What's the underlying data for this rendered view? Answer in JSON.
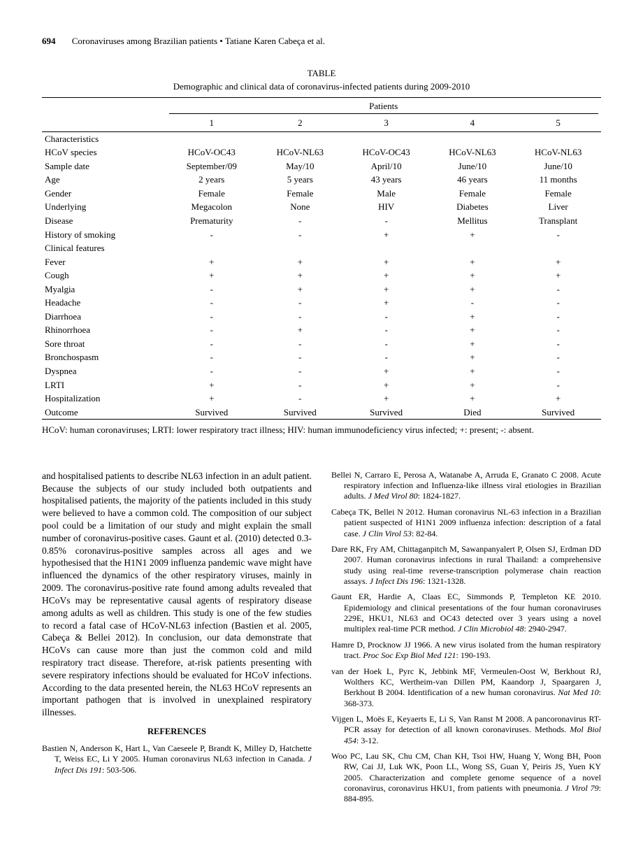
{
  "header": {
    "page_number": "694",
    "running_title": "Coronaviruses among Brazilian patients • Tatiane Karen Cabeça et al."
  },
  "table": {
    "caption_label": "TABLE",
    "caption_title": "Demographic and clinical data of coronavirus-infected patients during 2009-2010",
    "spanner": "Patients",
    "col_headers": [
      "1",
      "2",
      "3",
      "4",
      "5"
    ],
    "sections": [
      {
        "title": "Characteristics",
        "rows": [
          {
            "label": "HCoV species",
            "cells": [
              "HCoV-OC43",
              "HCoV-NL63",
              "HCoV-OC43",
              "HCoV-NL63",
              "HCoV-NL63"
            ]
          },
          {
            "label": "Sample date",
            "cells": [
              "September/09",
              "May/10",
              "April/10",
              "June/10",
              "June/10"
            ]
          },
          {
            "label": "Age",
            "cells": [
              "2 years",
              "5 years",
              "43 years",
              "46 years",
              "11 months"
            ]
          },
          {
            "label": "Gender",
            "cells": [
              "Female",
              "Female",
              "Male",
              "Female",
              "Female"
            ]
          },
          {
            "label": "Underlying",
            "cells": [
              "Megacolon",
              "None",
              "HIV",
              "Diabetes",
              "Liver"
            ]
          },
          {
            "label": "Disease",
            "cells": [
              "Prematurity",
              "-",
              "-",
              "Mellitus",
              "Transplant"
            ]
          },
          {
            "label": "History of smoking",
            "cells": [
              "-",
              "-",
              "+",
              "+",
              "-"
            ]
          }
        ]
      },
      {
        "title": "Clinical features",
        "rows": [
          {
            "label": "Fever",
            "cells": [
              "+",
              "+",
              "+",
              "+",
              "+"
            ]
          },
          {
            "label": "Cough",
            "cells": [
              "+",
              "+",
              "+",
              "+",
              "+"
            ]
          },
          {
            "label": "Myalgia",
            "cells": [
              "-",
              "+",
              "+",
              "+",
              "-"
            ]
          },
          {
            "label": "Headache",
            "cells": [
              "-",
              "-",
              "+",
              "-",
              "-"
            ]
          },
          {
            "label": "Diarrhoea",
            "cells": [
              "-",
              "-",
              "-",
              "+",
              "-"
            ]
          },
          {
            "label": "Rhinorrhoea",
            "cells": [
              "-",
              "+",
              "-",
              "+",
              "-"
            ]
          },
          {
            "label": "Sore throat",
            "cells": [
              "-",
              "-",
              "-",
              "+",
              "-"
            ]
          },
          {
            "label": "Bronchospasm",
            "cells": [
              "-",
              "-",
              "-",
              "+",
              "-"
            ]
          },
          {
            "label": "Dyspnea",
            "cells": [
              "-",
              "-",
              "+",
              "+",
              "-"
            ]
          },
          {
            "label": "LRTI",
            "cells": [
              "+",
              "-",
              "+",
              "+",
              "-"
            ]
          }
        ]
      }
    ],
    "bottom_rows": [
      {
        "label": "Hospitalization",
        "cells": [
          "+",
          "-",
          "+",
          "+",
          "+"
        ]
      },
      {
        "label": "Outcome",
        "cells": [
          "Survived",
          "Survived",
          "Survived",
          "Died",
          "Survived"
        ]
      }
    ],
    "footnote": "HCoV: human coronaviruses; LRTI: lower respiratory tract illness; HIV: human immunodeficiency virus infected; +: present; -: absent."
  },
  "body_paragraph": "and hospitalised patients to describe NL63 infection in an adult patient. Because the subjects of our study included both outpatients and hospitalised patients, the majority of the patients included in this study were believed to have a common cold. The composition of our subject pool could be a limitation of our study and might explain the small number of coronavirus-positive cases. Gaunt et al. (2010) detected 0.3-0.85% coronavirus-positive samples across all ages and we hypothesised that the H1N1 2009 influenza pandemic wave might have influenced the dynamics of the other respiratory viruses, mainly in 2009. The coronavirus-positive rate found among adults revealed that HCoVs may be representative causal agents of respiratory disease among adults as well as children. This study is one of the few studies to record a fatal case of HCoV-NL63 infection (Bastien et al. 2005, Cabeça & Bellei 2012). In conclusion, our data demonstrate that HCoVs can cause more than just the common cold and mild respiratory tract disease. Therefore, at-risk patients presenting with severe respiratory infections should be evaluated for HCoV infections. According to the data presented herein, the NL63 HCoV represents an important pathogen that is involved in unexplained respiratory illnesses.",
  "references_heading": "REFERENCES",
  "references": [
    {
      "text": "Bastien N, Anderson K, Hart L, Van Caeseele P, Brandt K, Milley D, Hatchette T, Weiss EC, Li Y 2005. Human coronavirus NL63 infection in Canada. ",
      "ital": "J Infect Dis 191",
      "tail": ": 503-506."
    },
    {
      "text": "Bellei N, Carraro E, Perosa A, Watanabe A, Arruda E, Granato C 2008. Acute respiratory infection and Influenza-like illness viral etiologies in Brazilian adults. ",
      "ital": "J Med Virol 80",
      "tail": ": 1824-1827."
    },
    {
      "text": "Cabeça TK, Bellei N 2012. Human coronavirus NL-63 infection in a Brazilian patient suspected of H1N1 2009 influenza infection: description of a fatal case. ",
      "ital": "J Clin Virol 53",
      "tail": ": 82-84."
    },
    {
      "text": "Dare RK, Fry AM, Chittaganpitch M, Sawanpanyalert P, Olsen SJ, Erdman DD 2007. Human coronavirus infections in rural Thailand: a comprehensive study using real-time reverse-transcription polymerase chain reaction assays. ",
      "ital": "J Infect Dis 196",
      "tail": ": 1321-1328."
    },
    {
      "text": "Gaunt ER, Hardie A, Claas EC, Simmonds P, Templeton KE 2010. Epidemiology and clinical presentations of the four human coronaviruses 229E, HKU1, NL63 and OC43 detected over 3 years using a novel multiplex real-time PCR method. ",
      "ital": "J Clin Microbiol 48",
      "tail": ": 2940-2947."
    },
    {
      "text": "Hamre D, Procknow JJ 1966. A new virus isolated from the human respiratory tract. ",
      "ital": "Proc Soc Exp Biol Med 121",
      "tail": ": 190-193."
    },
    {
      "text": "van der Hoek L, Pyrc K, Jebbink MF, Vermeulen-Oost W, Berkhout RJ, Wolthers KC, Wertheim-van Dillen PM, Kaandorp J, Spaargaren J, Berkhout B 2004. Identification of a new human coronavirus. ",
      "ital": "Nat Med 10",
      "tail": ": 368-373."
    },
    {
      "text": "Vijgen L, Moës E, Keyaerts E, Li S, Van Ranst M 2008. A pancoronavirus RT-PCR assay for detection of all known coronaviruses. Methods. ",
      "ital": "Mol Biol 454",
      "tail": ": 3-12."
    },
    {
      "text": "Woo PC, Lau SK, Chu CM, Chan KH, Tsoi HW, Huang Y, Wong BH, Poon RW, Cai JJ, Luk WK, Poon LL, Wong SS, Guan Y, Peiris JS, Yuen KY 2005. Characterization and complete genome sequence of a novel coronavirus, coronavirus HKU1, from patients with pneumonia. ",
      "ital": "J Virol 79",
      "tail": ": 884-895."
    }
  ]
}
